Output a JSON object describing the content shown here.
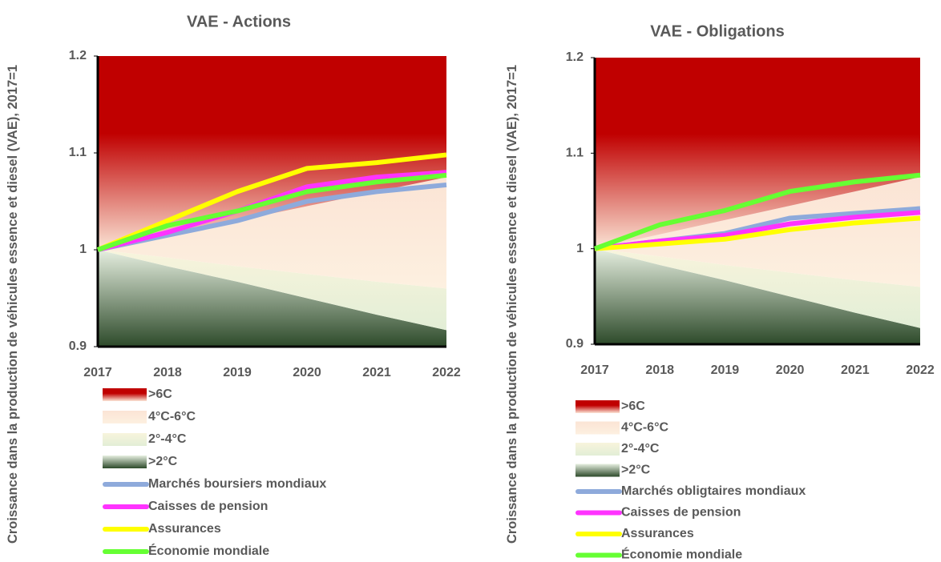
{
  "chart_data": [
    {
      "type": "line",
      "title": "VAE - Actions",
      "ylabel": "Croissance dans la production de véhicules essence et diesel (VAE), 2017=1",
      "categories": [
        "2017",
        "2018",
        "2019",
        "2020",
        "2021",
        "2022"
      ],
      "ylim": [
        0.9,
        1.2
      ],
      "yticks": [
        0.9,
        1,
        1.1,
        1.2
      ],
      "bands": [
        {
          "name": ">2°C",
          "colors": [
            "#e6efe0",
            "#2d4a2a"
          ],
          "values": [
            1,
            0.983,
            0.967,
            0.95,
            0.933,
            0.917
          ]
        },
        {
          "name": "2°-4°C",
          "colors": [
            "#f8f4dc",
            "#e2eed6"
          ],
          "values": [
            1,
            0.992,
            0.983,
            0.975,
            0.967,
            0.96
          ]
        },
        {
          "name": "4°C-6°C",
          "colors": [
            "#fbe4d5",
            "#fdf0e0"
          ],
          "values": [
            1,
            1.015,
            1.03,
            1.045,
            1.06,
            1.075
          ]
        },
        {
          "name": ">6C",
          "colors": [
            "#c00000",
            "#fbe5d6"
          ],
          "values": [
            1.2,
            1.2,
            1.2,
            1.2,
            1.2,
            1.2
          ]
        }
      ],
      "series": [
        {
          "name": "Marchés boursiers mondiaux",
          "color": "#8eaadb",
          "values": [
            1,
            1.015,
            1.03,
            1.05,
            1.06,
            1.067
          ]
        },
        {
          "name": "Caisses de pension",
          "color": "#ff33ff",
          "values": [
            1,
            1.018,
            1.04,
            1.065,
            1.075,
            1.08
          ]
        },
        {
          "name": "Assurances",
          "color": "#ffff00",
          "values": [
            1,
            1.03,
            1.06,
            1.084,
            1.09,
            1.098
          ]
        },
        {
          "name": "Économie mondiale",
          "color": "#66ff33",
          "values": [
            1,
            1.025,
            1.04,
            1.06,
            1.07,
            1.077
          ]
        }
      ]
    },
    {
      "type": "line",
      "title": "VAE - Obligations",
      "ylabel": "Croissance dans la production de véhicules essence et diesel (VAE), 2017=1",
      "categories": [
        "2017",
        "2018",
        "2019",
        "2020",
        "2021",
        "2022"
      ],
      "ylim": [
        0.9,
        1.2
      ],
      "yticks": [
        0.9,
        1,
        1.1,
        1.2
      ],
      "bands": [
        {
          "name": ">2°C",
          "colors": [
            "#e6efe0",
            "#2d4a2a"
          ],
          "values": [
            1,
            0.983,
            0.967,
            0.95,
            0.933,
            0.917
          ]
        },
        {
          "name": "2°-4°C",
          "colors": [
            "#f8f4dc",
            "#e2eed6"
          ],
          "values": [
            1,
            0.992,
            0.983,
            0.975,
            0.967,
            0.96
          ]
        },
        {
          "name": "4°C-6°C",
          "colors": [
            "#fbe4d5",
            "#fdf0e0"
          ],
          "values": [
            1,
            1.015,
            1.03,
            1.045,
            1.06,
            1.075
          ]
        },
        {
          "name": ">6C",
          "colors": [
            "#c00000",
            "#fbe5d6"
          ],
          "values": [
            1.2,
            1.2,
            1.2,
            1.2,
            1.2,
            1.2
          ]
        }
      ],
      "series": [
        {
          "name": "Marchés obligtaires mondiaux",
          "color": "#8eaadb",
          "values": [
            1,
            1.008,
            1.016,
            1.032,
            1.037,
            1.042
          ]
        },
        {
          "name": "Caisses de pension",
          "color": "#ff33ff",
          "values": [
            1,
            1.008,
            1.014,
            1.026,
            1.033,
            1.038
          ]
        },
        {
          "name": "Assurances",
          "color": "#ffff00",
          "values": [
            1,
            1.005,
            1.01,
            1.02,
            1.027,
            1.032
          ]
        },
        {
          "name": "Économie mondiale",
          "color": "#66ff33",
          "values": [
            1,
            1.025,
            1.04,
            1.06,
            1.07,
            1.077
          ]
        }
      ]
    }
  ]
}
